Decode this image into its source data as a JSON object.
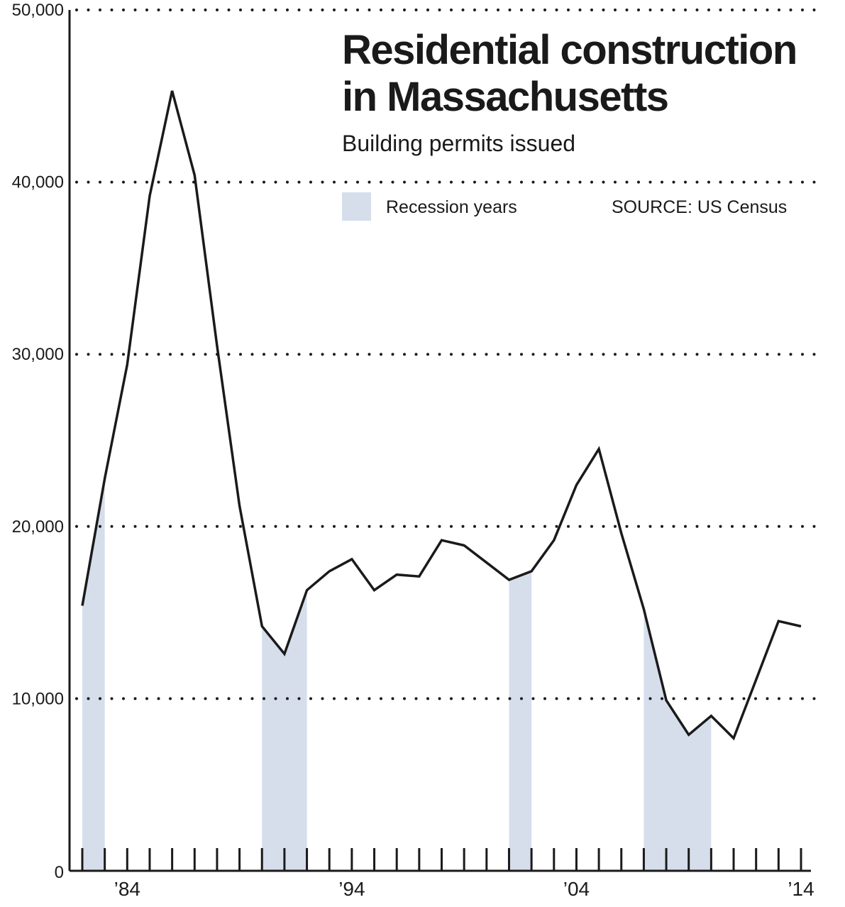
{
  "colors": {
    "line": "#1a1a1a",
    "recession": "#d6deec",
    "grid": "#1a1a1a"
  },
  "legend": {
    "recession_label": "Recession years"
  },
  "source": "SOURCE:  US Census",
  "chart_data": {
    "type": "line",
    "title": "Residential construction in Massachusetts",
    "title_lines": [
      "Residential construction",
      "in Massachusetts"
    ],
    "subtitle": "Building permits issued",
    "xlabel": "",
    "ylabel": "",
    "xlim": [
      1981.6,
      2014.6
    ],
    "ylim": [
      0,
      50000
    ],
    "y_ticks": [
      0,
      10000,
      20000,
      30000,
      40000,
      50000
    ],
    "y_tick_labels": [
      "0",
      "10,000",
      "20,000",
      "30,000",
      "40,000",
      "50,000"
    ],
    "x_tick_positions": [
      1984,
      1994,
      2004,
      2014
    ],
    "x_tick_labels": [
      "’84",
      "’94",
      "’04",
      "’14"
    ],
    "minor_ticks": [
      1982,
      1983,
      1984,
      1985,
      1986,
      1987,
      1988,
      1989,
      1990,
      1991,
      1992,
      1993,
      1994,
      1995,
      1996,
      1997,
      1998,
      1999,
      2000,
      2001,
      2002,
      2003,
      2004,
      2005,
      2006,
      2007,
      2008,
      2009,
      2010,
      2011,
      2012,
      2013,
      2014
    ],
    "grid": "horizontal dotted",
    "legend_position": "top-right",
    "series": [
      {
        "x": [
          1982,
          1983,
          1984,
          1985,
          1986,
          1987,
          1988,
          1989,
          1990,
          1991,
          1992,
          1993,
          1994,
          1995,
          1996,
          1997,
          1998,
          1999,
          2000,
          2001,
          2002,
          2003,
          2004,
          2005,
          2006,
          2007,
          2008,
          2009,
          2010,
          2011,
          2012,
          2013,
          2014
        ],
        "values": [
          15400,
          22800,
          29400,
          39200,
          45300,
          40400,
          30500,
          21200,
          14200,
          12600,
          16300,
          17400,
          18100,
          16300,
          17200,
          17100,
          19200,
          18900,
          17900,
          16900,
          17400,
          19200,
          22400,
          24500,
          19600,
          15200,
          9900,
          7900,
          9000,
          7700,
          11100,
          14500,
          14200
        ]
      }
    ],
    "recessions": [
      [
        1982,
        1983
      ],
      [
        1990,
        1992
      ],
      [
        2001,
        2002
      ],
      [
        2007,
        2010
      ]
    ]
  }
}
